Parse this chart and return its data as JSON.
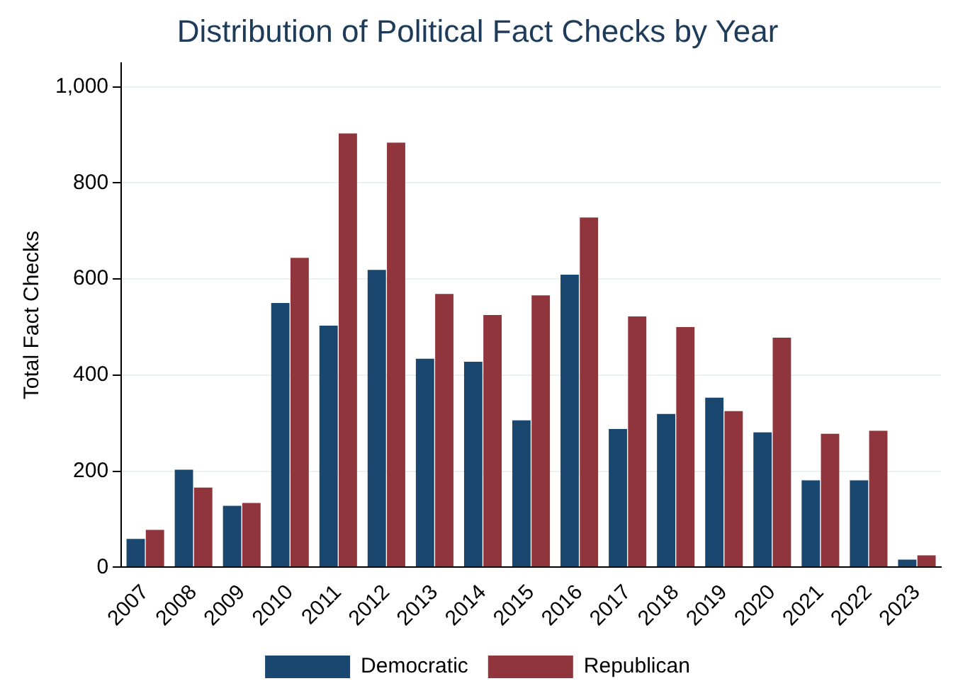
{
  "chart_data": {
    "type": "bar",
    "title": "Distribution of Political Fact Checks by Year",
    "ylabel": "Total Fact Checks",
    "categories": [
      "2007",
      "2008",
      "2009",
      "2010",
      "2011",
      "2012",
      "2013",
      "2014",
      "2015",
      "2016",
      "2017",
      "2018",
      "2019",
      "2020",
      "2021",
      "2022",
      "2023"
    ],
    "series": [
      {
        "name": "Democratic",
        "color": "#1a476f",
        "values": [
          59,
          203,
          128,
          550,
          503,
          619,
          434,
          428,
          306,
          609,
          288,
          319,
          353,
          281,
          181,
          181,
          16
        ]
      },
      {
        "name": "Republican",
        "color": "#90353b",
        "values": [
          78,
          166,
          134,
          644,
          903,
          884,
          569,
          525,
          566,
          728,
          522,
          500,
          325,
          478,
          278,
          284,
          25
        ]
      }
    ],
    "ylim": [
      0,
      1050
    ],
    "yticks": [
      0,
      200,
      400,
      600,
      800,
      {
        "value": 1000,
        "label": "1,000"
      }
    ],
    "grid": "y",
    "legend": "bottom"
  }
}
